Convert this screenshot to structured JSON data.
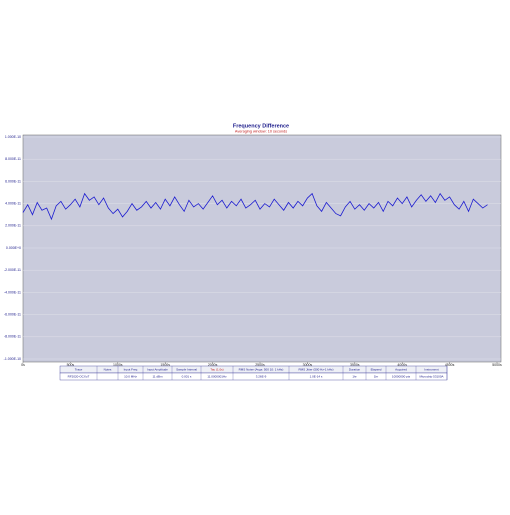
{
  "chart_data": {
    "type": "line",
    "title": "Frequency Difference",
    "subtitle": "Averaging window: 10 seconds",
    "x": [
      0,
      50,
      100,
      150,
      200,
      250,
      300,
      350,
      400,
      450,
      500,
      550,
      600,
      650,
      700,
      750,
      800,
      850,
      900,
      950,
      1000,
      1050,
      1100,
      1150,
      1200,
      1250,
      1300,
      1350,
      1400,
      1450,
      1500,
      1550,
      1600,
      1650,
      1700,
      1750,
      1800,
      1850,
      1900,
      1950,
      2000,
      2050,
      2100,
      2150,
      2200,
      2250,
      2300,
      2350,
      2400,
      2450,
      2500,
      2550,
      2600,
      2650,
      2700,
      2750,
      2800,
      2850,
      2900,
      2950,
      3000,
      3050,
      3100,
      3150,
      3200,
      3250,
      3300,
      3350,
      3400,
      3450,
      3500,
      3550,
      3600,
      3650,
      3700,
      3750,
      3800,
      3850,
      3900,
      3950,
      4000,
      4050,
      4100,
      4150,
      4200,
      4250,
      4300,
      4350,
      4400,
      4450,
      4500,
      4550,
      4600,
      4650,
      4700,
      4750,
      4800,
      4850,
      4900
    ],
    "series": [
      {
        "color": "#1c1cd0",
        "values": [
          3.2e-11,
          3.9e-11,
          3e-11,
          4.1e-11,
          3.4e-11,
          3.6e-11,
          2.6e-11,
          3.8e-11,
          4.2e-11,
          3.5e-11,
          3.9e-11,
          4.4e-11,
          3.7e-11,
          4.9e-11,
          4.3e-11,
          4.6e-11,
          3.9e-11,
          4.5e-11,
          3.6e-11,
          3.1e-11,
          3.5e-11,
          2.8e-11,
          3.3e-11,
          4e-11,
          3.4e-11,
          3.7e-11,
          4.2e-11,
          3.6e-11,
          4.1e-11,
          3.5e-11,
          4.4e-11,
          3.8e-11,
          4.6e-11,
          3.9e-11,
          3.3e-11,
          4.3e-11,
          3.7e-11,
          4e-11,
          3.5e-11,
          4.1e-11,
          4.7e-11,
          3.9e-11,
          4.3e-11,
          3.6e-11,
          4.2e-11,
          3.8e-11,
          4.4e-11,
          3.6e-11,
          3.9e-11,
          4.3e-11,
          3.5e-11,
          4e-11,
          3.7e-11,
          4.4e-11,
          3.9e-11,
          3.4e-11,
          4.1e-11,
          3.6e-11,
          4.2e-11,
          3.8e-11,
          4.5e-11,
          4.9e-11,
          3.8e-11,
          3.3e-11,
          4.1e-11,
          3.6e-11,
          3.1e-11,
          2.9e-11,
          3.7e-11,
          4.2e-11,
          3.5e-11,
          3.9e-11,
          3.4e-11,
          4e-11,
          3.6e-11,
          4.1e-11,
          3.3e-11,
          4.2e-11,
          3.8e-11,
          4.5e-11,
          4e-11,
          4.6e-11,
          3.7e-11,
          4.3e-11,
          4.8e-11,
          4.2e-11,
          4.7e-11,
          4.1e-11,
          4.9e-11,
          4.3e-11,
          4.6e-11,
          3.9e-11,
          3.5e-11,
          4.2e-11,
          3.3e-11,
          4.4e-11,
          4e-11,
          3.6e-11,
          3.9e-11
        ]
      }
    ],
    "xlim": [
      0,
      5000
    ],
    "xticks": [
      {
        "value": 0,
        "label": "0s"
      },
      {
        "value": 500,
        "label": "500s"
      },
      {
        "value": 1000,
        "label": "1000s"
      },
      {
        "value": 1500,
        "label": "1500s"
      },
      {
        "value": 2000,
        "label": "2000s"
      },
      {
        "value": 2500,
        "label": "2500s"
      },
      {
        "value": 3000,
        "label": "3000s"
      },
      {
        "value": 3500,
        "label": "3500s"
      },
      {
        "value": 4000,
        "label": "4000s"
      },
      {
        "value": 4500,
        "label": "4500s"
      },
      {
        "value": 5000,
        "label": "5000s"
      }
    ],
    "ylim": [
      -1e-10,
      1e-10
    ],
    "yticks": [
      {
        "value": 1e-10,
        "label": "1.000E-10"
      },
      {
        "value": 8e-11,
        "label": "8.000E-11"
      },
      {
        "value": 6e-11,
        "label": "6.000E-11"
      },
      {
        "value": 4e-11,
        "label": "4.000E-11"
      },
      {
        "value": 2e-11,
        "label": "2.000E-11"
      },
      {
        "value": 0,
        "label": "0.000E+0"
      },
      {
        "value": -2e-11,
        "label": "-2.000E-11"
      },
      {
        "value": -4e-11,
        "label": "-4.000E-11"
      },
      {
        "value": -6e-11,
        "label": "-6.000E-11"
      },
      {
        "value": -8e-11,
        "label": "-8.000E-11"
      },
      {
        "value": -1e-10,
        "label": "-1.000E-10"
      }
    ],
    "grid": true
  },
  "table": {
    "header": [
      "Trace",
      "Notes",
      "Input Freq",
      "Input Amplitude",
      "Sample Interval",
      "Tau (1.0s)",
      "RMS Noise (Avgs: 500 10: 1 kHz)",
      "RMS Jitter (500 Hz-1 kHz)",
      "Duration",
      "Elapsed",
      "Acquired",
      "Instrument"
    ],
    "row": [
      "RF2020-OCXoT",
      null,
      "10.0 MHz",
      "11 dBm",
      "0.001 s",
      "11.0000001Hz",
      "3.26E-9",
      "1.0E-14 s",
      "1hr",
      "1hr",
      "10000000 pts",
      "Microchip 53100A"
    ]
  }
}
